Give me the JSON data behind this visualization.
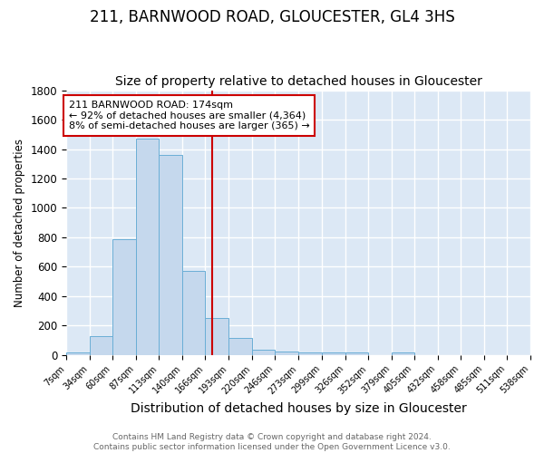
{
  "title": "211, BARNWOOD ROAD, GLOUCESTER, GL4 3HS",
  "subtitle": "Size of property relative to detached houses in Gloucester",
  "xlabel": "Distribution of detached houses by size in Gloucester",
  "ylabel": "Number of detached properties",
  "bar_color": "#c5d8ed",
  "bar_edge_color": "#6aaed6",
  "background_color": "#dce8f5",
  "grid_color": "white",
  "bins": [
    7,
    34,
    60,
    87,
    113,
    140,
    166,
    193,
    220,
    246,
    273,
    299,
    326,
    352,
    379,
    405,
    432,
    458,
    485,
    511,
    538
  ],
  "counts": [
    20,
    130,
    790,
    1470,
    1360,
    570,
    250,
    115,
    35,
    25,
    15,
    15,
    20,
    0,
    20,
    0,
    0,
    0,
    0,
    0
  ],
  "tick_labels": [
    "7sqm",
    "34sqm",
    "60sqm",
    "87sqm",
    "113sqm",
    "140sqm",
    "166sqm",
    "193sqm",
    "220sqm",
    "246sqm",
    "273sqm",
    "299sqm",
    "326sqm",
    "352sqm",
    "379sqm",
    "405sqm",
    "432sqm",
    "458sqm",
    "485sqm",
    "511sqm",
    "538sqm"
  ],
  "ylim": [
    0,
    1800
  ],
  "property_line_x": 174,
  "property_line_color": "#cc0000",
  "annotation_text": "211 BARNWOOD ROAD: 174sqm\n← 92% of detached houses are smaller (4,364)\n8% of semi-detached houses are larger (365) →",
  "annotation_box_color": "white",
  "annotation_box_edge": "#cc0000",
  "footer_text": "Contains HM Land Registry data © Crown copyright and database right 2024.\nContains public sector information licensed under the Open Government Licence v3.0.",
  "title_fontsize": 12,
  "subtitle_fontsize": 10,
  "ylabel_fontsize": 8.5,
  "xlabel_fontsize": 10,
  "tick_fontsize": 7,
  "annotation_fontsize": 8,
  "footer_fontsize": 6.5
}
